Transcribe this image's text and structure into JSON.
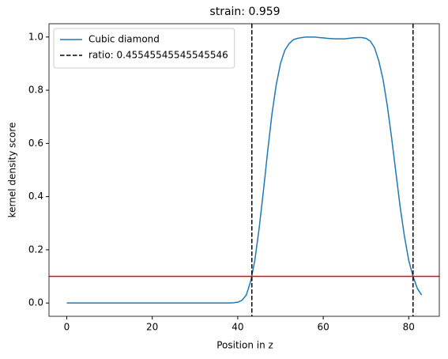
{
  "chart_data": {
    "type": "line",
    "title": "strain: 0.959",
    "xlabel": "Position in z",
    "ylabel": "kernel density score",
    "x": [
      0,
      1,
      2,
      3,
      4,
      5,
      6,
      7,
      8,
      9,
      10,
      11,
      12,
      13,
      14,
      15,
      16,
      17,
      18,
      19,
      20,
      21,
      22,
      23,
      24,
      25,
      26,
      27,
      28,
      29,
      30,
      31,
      32,
      33,
      34,
      35,
      36,
      37,
      38,
      39,
      40,
      41,
      42,
      43,
      44,
      45,
      46,
      47,
      48,
      49,
      50,
      51,
      52,
      53,
      54,
      55,
      56,
      57,
      58,
      59,
      60,
      61,
      62,
      63,
      64,
      65,
      66,
      67,
      68,
      69,
      70,
      71,
      72,
      73,
      74,
      75,
      76,
      77,
      78,
      79,
      80,
      81,
      82,
      83
    ],
    "series": [
      {
        "name": "Cubic diamond",
        "color": "#1f77b4",
        "values": [
          0,
          0,
          0,
          0,
          0,
          0,
          0,
          0,
          0,
          0,
          0,
          0,
          0,
          0,
          0,
          0,
          0,
          0,
          0,
          0,
          0,
          0,
          0,
          0,
          0,
          0,
          0,
          0,
          0,
          0,
          0,
          0,
          0,
          0,
          0,
          0,
          0,
          0,
          0,
          0.001,
          0.003,
          0.01,
          0.03,
          0.08,
          0.16,
          0.28,
          0.42,
          0.57,
          0.71,
          0.82,
          0.9,
          0.95,
          0.975,
          0.99,
          0.995,
          0.998,
          1.0,
          1.0,
          1.0,
          0.998,
          0.997,
          0.995,
          0.994,
          0.993,
          0.993,
          0.993,
          0.995,
          0.997,
          0.998,
          0.998,
          0.995,
          0.985,
          0.96,
          0.91,
          0.84,
          0.74,
          0.62,
          0.49,
          0.36,
          0.25,
          0.16,
          0.1,
          0.055,
          0.03
        ]
      }
    ],
    "vlines": {
      "name": "ratio: 0.45545545545545546",
      "color": "#000000",
      "x": [
        43.3,
        81
      ]
    },
    "hline": {
      "y": 0.1,
      "color": "#ff0000"
    },
    "xlim": [
      -4.15,
      87.15
    ],
    "xticks": [
      0,
      20,
      40,
      60,
      80
    ],
    "ylim": [
      -0.05,
      1.05
    ],
    "yticks": [
      {
        "value": 0,
        "label": "0.0"
      },
      {
        "value": 0.2,
        "label": "0.2"
      },
      {
        "value": 0.4,
        "label": "0.4"
      },
      {
        "value": 0.6,
        "label": "0.6"
      },
      {
        "value": 0.8,
        "label": "0.8"
      },
      {
        "value": 1,
        "label": "1.0"
      }
    ],
    "legend": "upper left"
  }
}
